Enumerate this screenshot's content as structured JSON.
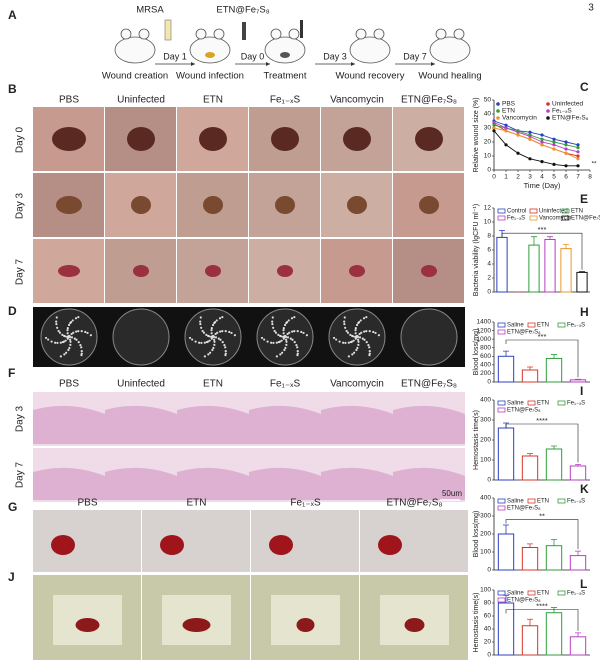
{
  "page_number": "3",
  "panel_labels": [
    "A",
    "B",
    "C",
    "D",
    "E",
    "F",
    "G",
    "H",
    "I",
    "J",
    "K",
    "L"
  ],
  "schematic": {
    "agents": [
      "MRSA",
      "ETN@Fe₇S₈"
    ],
    "days": [
      "Day 1",
      "Day 0",
      "Day 3",
      "Day 7"
    ],
    "stages": [
      "Wound creation",
      "Wound infection",
      "Treatment",
      "Wound recovery",
      "Wound healing"
    ]
  },
  "wound_photos": {
    "columns": [
      "PBS",
      "Uninfected",
      "ETN",
      "Fe₁₋ₓS",
      "Vancomycin",
      "ETN@Fe₇S₈"
    ],
    "rows": [
      "Day 0",
      "Day 3",
      "Day 7"
    ]
  },
  "histology": {
    "columns": [
      "PBS",
      "Uninfected",
      "ETN",
      "Fe₁₋ₓS",
      "Vancomycin",
      "ETN@Fe₇S₈"
    ],
    "rows": [
      "Day 3",
      "Day 7"
    ],
    "scale_bar": "50um"
  },
  "hemostasis_photos": {
    "columns": [
      "PBS",
      "ETN",
      "Fe₁₋ₓS",
      "ETN@Fe₇S₈"
    ]
  },
  "chart_data": [
    {
      "type": "line",
      "y_label": "Relative wound size (%)",
      "x_label": "Time (Day)",
      "x": [
        0,
        1,
        2,
        3,
        4,
        5,
        6,
        7
      ],
      "xlim": [
        0,
        8
      ],
      "xticks": [
        0,
        1,
        2,
        3,
        4,
        5,
        6,
        7,
        8
      ],
      "ylim": [
        0,
        50
      ],
      "yticks": [
        0,
        10,
        20,
        30,
        40,
        50
      ],
      "annotation": "**",
      "series": [
        {
          "name": "PBS",
          "color": "#2b3fc4",
          "values": [
            35,
            32,
            28,
            27,
            25,
            22,
            20,
            18
          ]
        },
        {
          "name": "Uninfected",
          "color": "#d8342a",
          "values": [
            33,
            28,
            25,
            22,
            18,
            15,
            12,
            10
          ]
        },
        {
          "name": "ETN",
          "color": "#2e9e3a",
          "values": [
            32,
            30,
            28,
            25,
            22,
            20,
            18,
            16
          ]
        },
        {
          "name": "Fe₁₋ₓS",
          "color": "#b63fc1",
          "values": [
            34,
            30,
            27,
            24,
            20,
            18,
            15,
            13
          ]
        },
        {
          "name": "Vancomycin",
          "color": "#e8962c",
          "values": [
            30,
            28,
            25,
            22,
            18,
            15,
            12,
            8
          ]
        },
        {
          "name": "ETN@Fe₇S₈",
          "color": "#111111",
          "values": [
            28,
            18,
            12,
            8,
            6,
            4,
            3,
            3
          ]
        }
      ]
    },
    {
      "type": "bar",
      "y_label": "Bacteria viability (lgCFU ml⁻¹)",
      "categories": [
        "Control",
        "Uninfected",
        "ETN",
        "Fe₁₋ₓS",
        "Vancomycin",
        "ETN@Fe₇S₈"
      ],
      "values": [
        7.8,
        0,
        6.7,
        7.5,
        6.2,
        2.8
      ],
      "errors": [
        1.0,
        0,
        1.2,
        0.4,
        0.6,
        0.1
      ],
      "colors": [
        "#2b3fc4",
        "#d8342a",
        "#2e9e3a",
        "#b63fc1",
        "#e8962c",
        "#111111"
      ],
      "ylim": [
        0,
        12
      ],
      "yticks": [
        0,
        2,
        4,
        6,
        8,
        10,
        12
      ],
      "annotation": "***"
    },
    {
      "type": "bar",
      "y_label": "Blood loss(mg)",
      "categories": [
        "Saline",
        "ETN",
        "Fe₁₋ₓS",
        "ETN@Fe₇S₈"
      ],
      "values": [
        600,
        280,
        550,
        50
      ],
      "errors": [
        120,
        70,
        90,
        15
      ],
      "colors": [
        "#2b3fc4",
        "#d8342a",
        "#2e9e3a",
        "#b63fc1"
      ],
      "ylim": [
        0,
        1400
      ],
      "yticks": [
        0,
        200,
        400,
        600,
        800,
        1000,
        1200,
        1400
      ],
      "annotation": "***"
    },
    {
      "type": "bar",
      "y_label": "Hemostasis time(s)",
      "categories": [
        "Saline",
        "ETN",
        "Fe₁₋ₓS",
        "ETN@Fe₇S₈"
      ],
      "values": [
        260,
        120,
        155,
        70
      ],
      "errors": [
        25,
        12,
        15,
        8
      ],
      "colors": [
        "#2b3fc4",
        "#d8342a",
        "#2e9e3a",
        "#b63fc1"
      ],
      "ylim": [
        0,
        400
      ],
      "yticks": [
        0,
        100,
        200,
        300,
        400
      ],
      "annotation": "****"
    },
    {
      "type": "bar",
      "y_label": "Blood loss(mg)",
      "categories": [
        "Saline",
        "ETN",
        "Fe₁₋ₓS",
        "ETN@Fe₇S₈"
      ],
      "values": [
        200,
        125,
        135,
        80
      ],
      "errors": [
        50,
        20,
        35,
        25
      ],
      "colors": [
        "#2b3fc4",
        "#d8342a",
        "#2e9e3a",
        "#b63fc1"
      ],
      "ylim": [
        0,
        400
      ],
      "yticks": [
        0,
        100,
        200,
        300,
        400
      ],
      "annotation": "**"
    },
    {
      "type": "bar",
      "y_label": "Hemostasis time(s)",
      "categories": [
        "Saline",
        "ETN",
        "Fe₁₋ₓS",
        "ETN@Fe₇S₈"
      ],
      "values": [
        80,
        45,
        65,
        28
      ],
      "errors": [
        12,
        10,
        8,
        6
      ],
      "colors": [
        "#2b3fc4",
        "#d8342a",
        "#2e9e3a",
        "#b63fc1"
      ],
      "ylim": [
        0,
        100
      ],
      "yticks": [
        0,
        20,
        40,
        60,
        80,
        100
      ],
      "annotation": "****"
    }
  ]
}
